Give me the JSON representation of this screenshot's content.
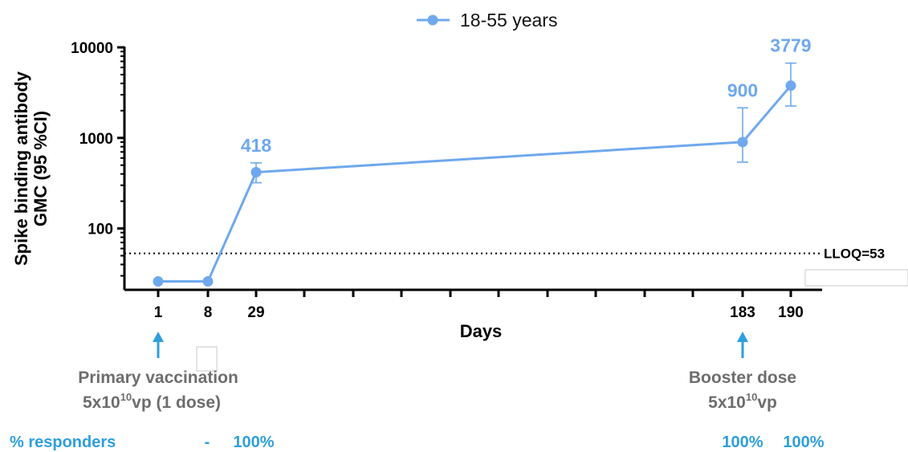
{
  "chart_data": {
    "type": "line",
    "x": [
      1,
      8,
      29,
      183,
      190
    ],
    "x_tick_labels": [
      "1",
      "8",
      "29",
      "183",
      "190"
    ],
    "series": [
      {
        "name": "18-55 years",
        "color": "#6fa8ee",
        "values": [
          26,
          26,
          418,
          900,
          3779
        ],
        "ci_low": [
          null,
          null,
          320,
          540,
          2250
        ],
        "ci_high": [
          null,
          null,
          530,
          2150,
          6700
        ],
        "data_labels": [
          "",
          "",
          "418",
          "900",
          "3779"
        ]
      }
    ],
    "xlabel": "Days",
    "ylabel_line1": "Spike binding antibody",
    "ylabel_line2": "GMC (95 %CI)",
    "y_scale": "log",
    "y_ticks": [
      100,
      1000,
      10000
    ],
    "y_tick_labels": [
      "100",
      "1000",
      "10000"
    ],
    "ylim": [
      21,
      10000
    ],
    "grid": false,
    "legend_position": "top-center",
    "reference_line": {
      "value": 53,
      "label": "LLOQ=53",
      "style": "dotted"
    }
  },
  "annotations": {
    "primary_line1": "Primary  vaccination",
    "primary_line2_base": "5x10",
    "primary_line2_sup": "10",
    "primary_line2_tail": "vp (1 dose)",
    "booster_line1": "Booster dose",
    "booster_line2_base": "5x10",
    "booster_line2_sup": "10",
    "booster_line2_tail": "vp",
    "arrow_color": "#2e9fdc"
  },
  "responders": {
    "label": "% responders",
    "values": [
      "-",
      "100%",
      "100%",
      "100%"
    ]
  }
}
